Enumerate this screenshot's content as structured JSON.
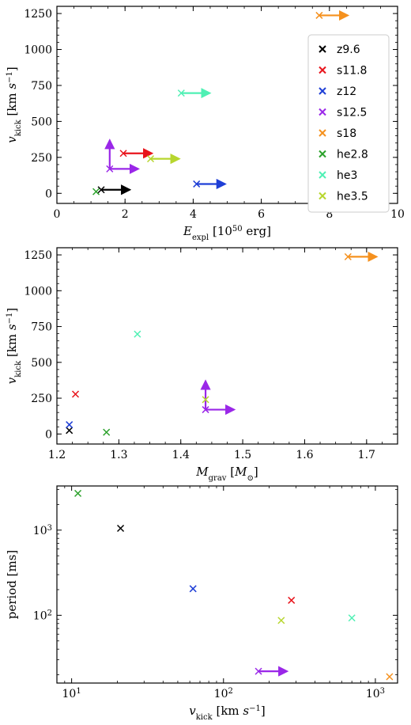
{
  "series_styles": [
    {
      "name": "z9.6",
      "color": "#000000"
    },
    {
      "name": "s11.8",
      "color": "#e8141c"
    },
    {
      "name": "z12",
      "color": "#1f3fd6"
    },
    {
      "name": "s12.5",
      "color": "#9a27e8"
    },
    {
      "name": "s18",
      "color": "#f5911e"
    },
    {
      "name": "he2.8",
      "color": "#2aa12a"
    },
    {
      "name": "he3",
      "color": "#4ff0b4"
    },
    {
      "name": "he3.5",
      "color": "#b7d62e"
    }
  ],
  "chart_data": [
    {
      "type": "scatter",
      "xlabel": "E_expl [10^50 erg]",
      "ylabel": "v_kick [km s^-1]",
      "xlim": [
        0,
        10
      ],
      "ylim": [
        -70,
        1300
      ],
      "xscale": "linear",
      "yscale": "linear",
      "xticks": [
        0,
        2,
        4,
        6,
        8,
        10
      ],
      "yticks": [
        0,
        250,
        500,
        750,
        1000,
        1250
      ],
      "grid": false,
      "legend": "right",
      "points": [
        {
          "series": "z9.6",
          "x": 1.3,
          "y": 25,
          "arrow_right": true,
          "arrow_up": false
        },
        {
          "series": "s11.8",
          "x": 1.95,
          "y": 278,
          "arrow_right": true,
          "arrow_up": false
        },
        {
          "series": "z12",
          "x": 4.1,
          "y": 65,
          "arrow_right": true,
          "arrow_up": false
        },
        {
          "series": "s12.5",
          "x": 1.55,
          "y": 170,
          "arrow_right": true,
          "arrow_up": true
        },
        {
          "series": "s18",
          "x": 7.7,
          "y": 1237,
          "arrow_right": true,
          "arrow_up": false
        },
        {
          "series": "he2.8",
          "x": 1.15,
          "y": 12,
          "arrow_right": false,
          "arrow_up": false
        },
        {
          "series": "he3",
          "x": 3.65,
          "y": 697,
          "arrow_right": true,
          "arrow_up": false
        },
        {
          "series": "he3.5",
          "x": 2.75,
          "y": 240,
          "arrow_right": true,
          "arrow_up": false
        }
      ]
    },
    {
      "type": "scatter",
      "xlabel": "M_grav [M_sun]",
      "ylabel": "v_kick [km s^-1]",
      "xlim": [
        1.2,
        1.75
      ],
      "ylim": [
        -70,
        1300
      ],
      "xscale": "linear",
      "yscale": "linear",
      "xticks": [
        1.2,
        1.3,
        1.4,
        1.5,
        1.6,
        1.7
      ],
      "yticks": [
        0,
        250,
        500,
        750,
        1000,
        1250
      ],
      "grid": false,
      "points": [
        {
          "series": "z9.6",
          "x": 1.22,
          "y": 25,
          "arrow_right": false,
          "arrow_up": false
        },
        {
          "series": "s11.8",
          "x": 1.23,
          "y": 278,
          "arrow_right": false,
          "arrow_up": false
        },
        {
          "series": "z12",
          "x": 1.22,
          "y": 65,
          "arrow_right": false,
          "arrow_up": false
        },
        {
          "series": "s12.5",
          "x": 1.44,
          "y": 170,
          "arrow_right": true,
          "arrow_up": true
        },
        {
          "series": "s18",
          "x": 1.67,
          "y": 1237,
          "arrow_right": true,
          "arrow_up": false
        },
        {
          "series": "he2.8",
          "x": 1.28,
          "y": 12,
          "arrow_right": false,
          "arrow_up": false
        },
        {
          "series": "he3",
          "x": 1.33,
          "y": 697,
          "arrow_right": false,
          "arrow_up": false
        },
        {
          "series": "he3.5",
          "x": 1.44,
          "y": 240,
          "arrow_right": false,
          "arrow_up": false
        }
      ]
    },
    {
      "type": "scatter",
      "xlabel": "v_kick [km s^-1]",
      "ylabel": "period [ms]",
      "xlim": [
        8,
        1400
      ],
      "ylim": [
        16,
        3300
      ],
      "xscale": "log",
      "yscale": "log",
      "xticks": [
        10,
        100,
        1000
      ],
      "yticks": [
        100,
        1000
      ],
      "grid": false,
      "points": [
        {
          "series": "z9.6",
          "x": 21,
          "y": 1050,
          "arrow_right": false,
          "arrow_up": false
        },
        {
          "series": "s11.8",
          "x": 280,
          "y": 150,
          "arrow_right": false,
          "arrow_up": false
        },
        {
          "series": "z12",
          "x": 63,
          "y": 205,
          "arrow_right": false,
          "arrow_up": false
        },
        {
          "series": "s12.5",
          "x": 170,
          "y": 22,
          "arrow_right": true,
          "arrow_up": false
        },
        {
          "series": "s18",
          "x": 1240,
          "y": 19,
          "arrow_right": false,
          "arrow_up": false
        },
        {
          "series": "he2.8",
          "x": 11,
          "y": 2700,
          "arrow_right": false,
          "arrow_up": false
        },
        {
          "series": "he3",
          "x": 700,
          "y": 93,
          "arrow_right": false,
          "arrow_up": false
        },
        {
          "series": "he3.5",
          "x": 240,
          "y": 87,
          "arrow_right": false,
          "arrow_up": false
        }
      ]
    }
  ]
}
